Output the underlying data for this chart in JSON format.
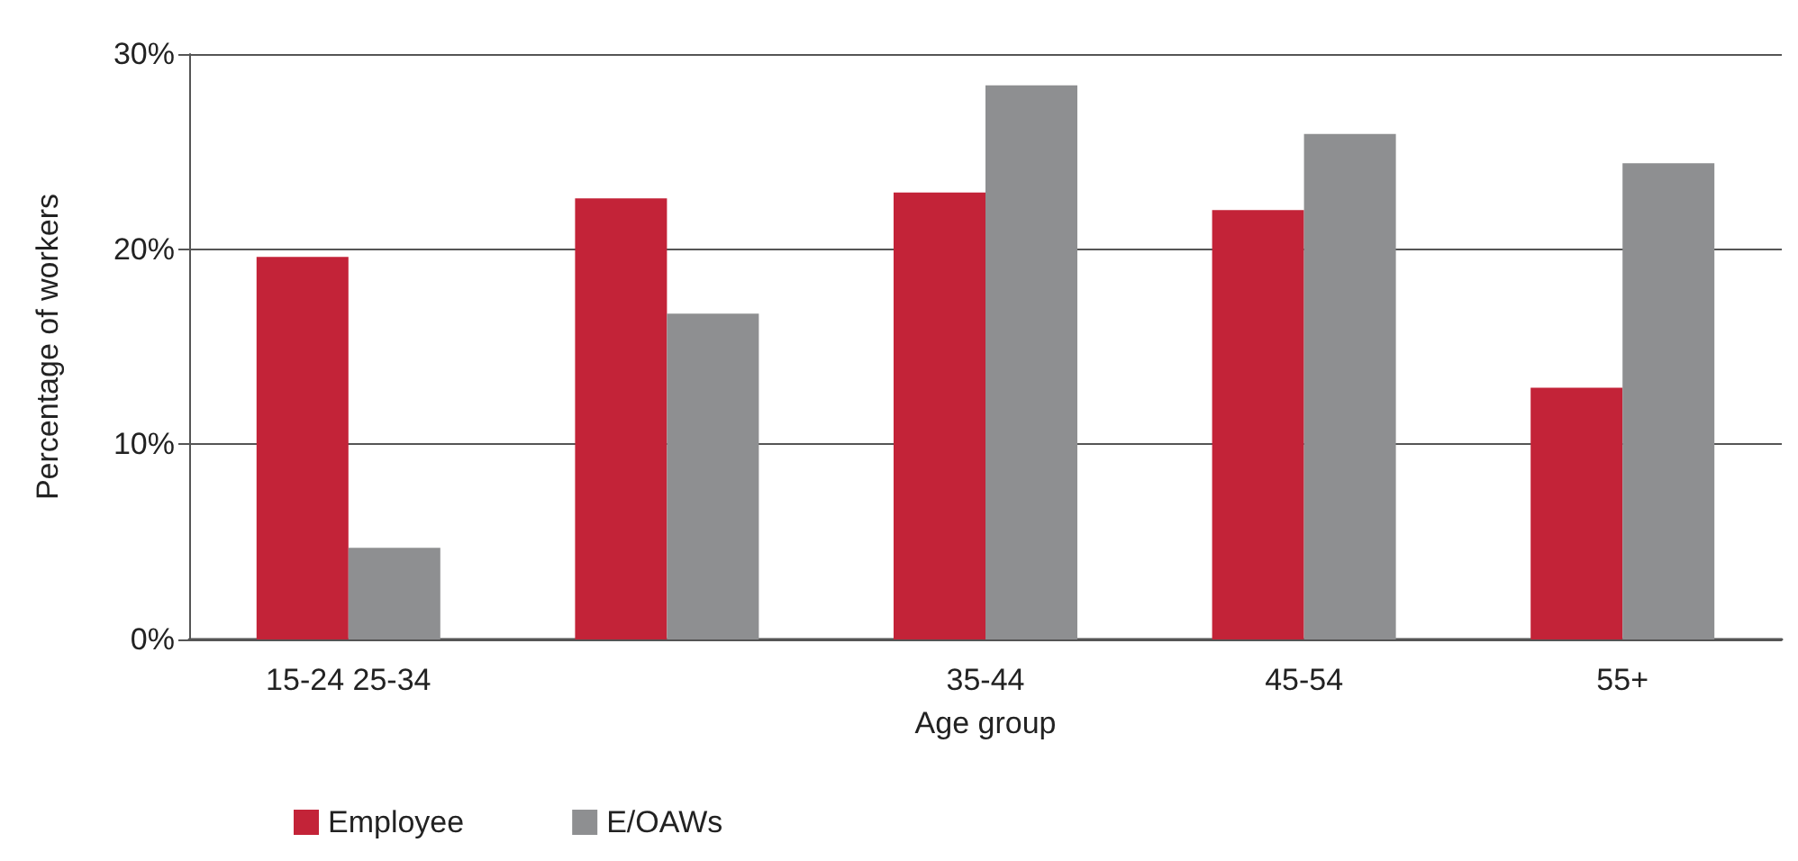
{
  "chart_data": {
    "type": "bar",
    "xlabel": "Age group",
    "ylabel": "Percentage of workers",
    "categories": [
      "15-24 25-34",
      null,
      "35-44",
      "45-54",
      "55+"
    ],
    "series": [
      {
        "name": "Employee",
        "color": "#c32338",
        "values": [
          19.6,
          22.6,
          22.9,
          22.0,
          12.9
        ]
      },
      {
        "name": "E/OAWs",
        "color": "#8e8f91",
        "values": [
          4.7,
          16.7,
          28.4,
          25.9,
          24.4
        ]
      }
    ],
    "ylim": [
      0,
      30
    ],
    "yticks": [
      {
        "value": 0,
        "label": "0%"
      },
      {
        "value": 10,
        "label": "10%"
      },
      {
        "value": 20,
        "label": "20%"
      },
      {
        "value": 30,
        "label": "30%"
      }
    ],
    "grid": "y",
    "legend": "bottom left"
  }
}
